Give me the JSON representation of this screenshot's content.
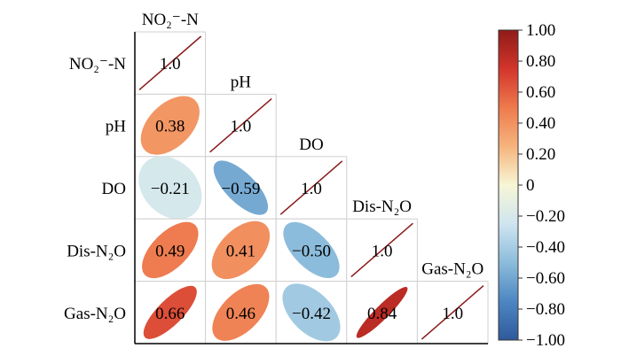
{
  "chart_data": {
    "type": "heatmap",
    "variables": [
      "NO₂⁻-N",
      "pH",
      "DO",
      "Dis-N₂O",
      "Gas-N₂O"
    ],
    "matrix": [
      [
        1.0,
        null,
        null,
        null,
        null
      ],
      [
        0.38,
        1.0,
        null,
        null,
        null
      ],
      [
        -0.21,
        -0.59,
        1.0,
        null,
        null
      ],
      [
        0.49,
        0.41,
        -0.5,
        1.0,
        null
      ],
      [
        0.66,
        0.46,
        -0.42,
        0.84,
        1.0
      ]
    ],
    "cell_labels": [
      [
        "1.0",
        "",
        "",
        "",
        ""
      ],
      [
        "0.38",
        "1.0",
        "",
        "",
        ""
      ],
      [
        "−0.21",
        "−0.59",
        "1.0",
        "",
        ""
      ],
      [
        "0.49",
        "0.41",
        "−0.50",
        "1.0",
        ""
      ],
      [
        "0.66",
        "0.46",
        "−0.42",
        "0.84",
        "1.0"
      ]
    ],
    "colorbar": {
      "range": [
        -1.0,
        1.0
      ],
      "ticks": [
        1.0,
        0.8,
        0.6,
        0.4,
        0.2,
        0,
        -0.2,
        -0.4,
        -0.6,
        -0.8,
        -1.0
      ],
      "tick_labels": [
        "1.00",
        "0.80",
        "0.60",
        "0.40",
        "0.20",
        "0",
        "−0.20",
        "−0.40",
        "−0.60",
        "−0.80",
        "−1.00"
      ],
      "colors": [
        "#2f5a9c",
        "#4d86c2",
        "#8cbcdb",
        "#cfe5f0",
        "#f7f6d6",
        "#f6b47c",
        "#ee7a4e",
        "#d2352b",
        "#8f1b18"
      ]
    },
    "diagonal_line_color": "#8b1a1a"
  }
}
